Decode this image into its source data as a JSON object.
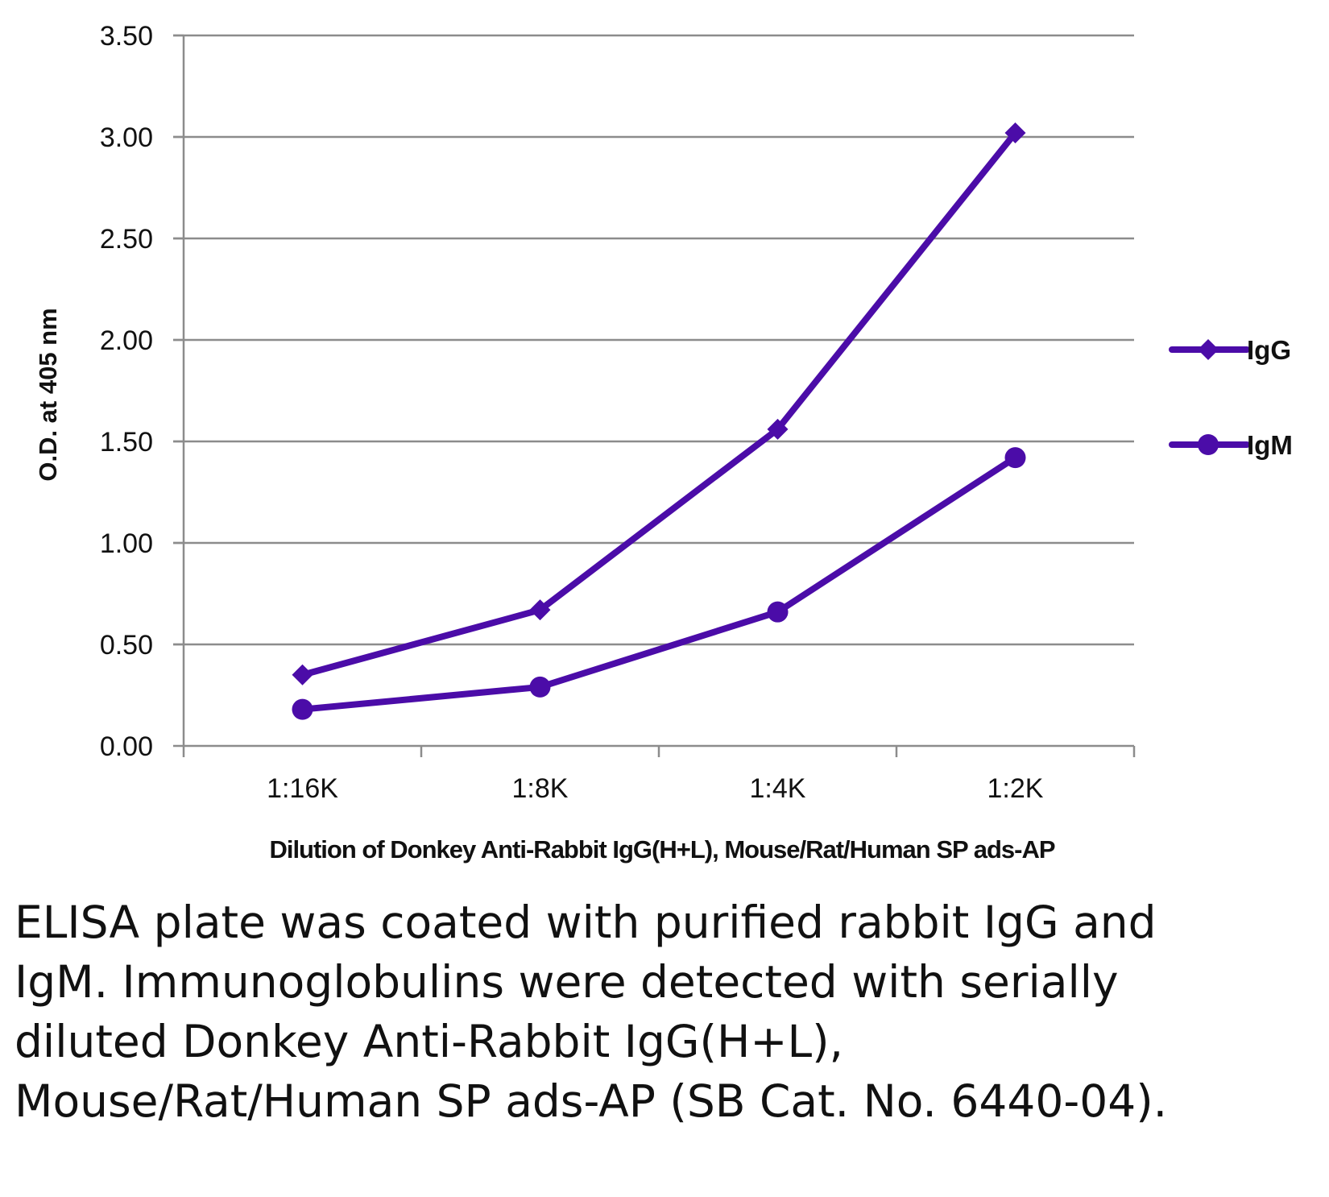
{
  "chart_data": {
    "type": "line",
    "categories": [
      "1:16K",
      "1:8K",
      "1:4K",
      "1:2K"
    ],
    "series": [
      {
        "name": "IgG",
        "marker": "diamond",
        "values": [
          0.35,
          0.67,
          1.56,
          3.02
        ]
      },
      {
        "name": "IgM",
        "marker": "circle",
        "values": [
          0.18,
          0.29,
          0.66,
          1.42
        ]
      }
    ],
    "yticks": [
      "0.00",
      "0.50",
      "1.00",
      "1.50",
      "2.00",
      "2.50",
      "3.00",
      "3.50"
    ],
    "ylim": [
      0,
      3.5
    ],
    "xlabel": "Dilution of Donkey Anti-Rabbit IgG(H+L), Mouse/Rat/Human SP ads-AP",
    "ylabel": "O.D. at 405 nm",
    "grid": true,
    "legend_position": "right",
    "line_color": "#4B0CA8"
  },
  "caption": "ELISA plate was coated with purified rabbit IgG and IgM.  Immunoglobulins were detected with serially diluted Donkey Anti-Rabbit IgG(H+L), Mouse/Rat/Human SP ads-AP (SB Cat. No. 6440-04)."
}
